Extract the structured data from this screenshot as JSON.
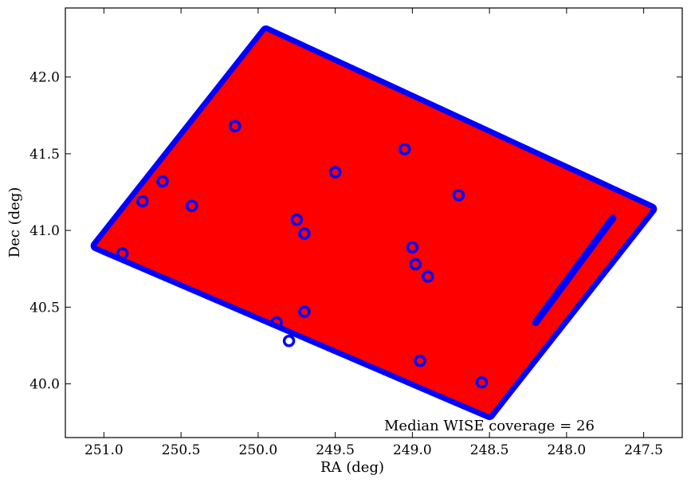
{
  "chart_data": {
    "type": "scatter",
    "xlabel": "RA (deg)",
    "ylabel": "Dec (deg)",
    "xlim": [
      251.25,
      247.25
    ],
    "ylim": [
      39.65,
      42.45
    ],
    "x_ticks": [
      "251.0",
      "250.5",
      "250.0",
      "249.5",
      "249.0",
      "248.5",
      "248.0",
      "247.5"
    ],
    "y_ticks": [
      "40.0",
      "40.5",
      "41.0",
      "41.5",
      "42.0"
    ],
    "x_tick_values": [
      251.0,
      250.5,
      250.0,
      249.5,
      249.0,
      248.5,
      248.0,
      247.5
    ],
    "y_tick_values": [
      40.0,
      40.5,
      41.0,
      41.5,
      42.0
    ],
    "annotation": "Median WISE coverage = 26",
    "grid": false,
    "colors": {
      "edge": "#0000ff",
      "fill": "#ff0000"
    },
    "footprint_corners": [
      [
        251.05,
        40.9
      ],
      [
        249.95,
        42.3
      ],
      [
        247.45,
        41.14
      ],
      [
        248.5,
        39.8
      ]
    ],
    "inner_notch": [
      [
        247.7,
        41.08
      ],
      [
        248.2,
        40.4
      ]
    ],
    "holes": [
      [
        250.15,
        41.68
      ],
      [
        249.05,
        41.53
      ],
      [
        248.7,
        41.23
      ],
      [
        250.62,
        41.32
      ],
      [
        250.75,
        41.19
      ],
      [
        250.43,
        41.16
      ],
      [
        249.5,
        41.38
      ],
      [
        249.75,
        41.07
      ],
      [
        249.0,
        40.89
      ],
      [
        248.98,
        40.78
      ],
      [
        249.88,
        40.4
      ],
      [
        249.7,
        40.47
      ],
      [
        249.8,
        40.28
      ],
      [
        248.95,
        40.15
      ],
      [
        248.55,
        40.01
      ],
      [
        250.88,
        40.85
      ],
      [
        249.7,
        40.98
      ],
      [
        248.9,
        40.7
      ]
    ]
  }
}
